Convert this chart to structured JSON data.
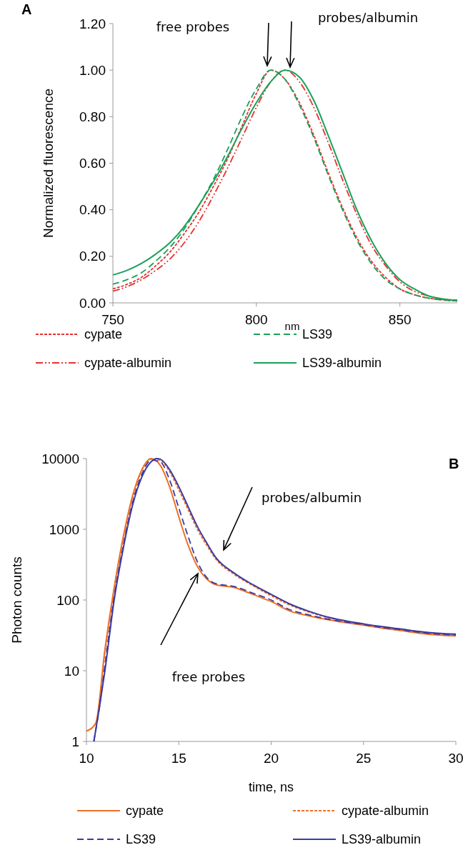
{
  "chart_data": [
    {
      "type": "line",
      "xlabel": "nm",
      "ylabel": "Normalized  fluorescence",
      "xlim": [
        750,
        870
      ],
      "xticks": [
        750,
        800,
        850
      ],
      "ylim": [
        0,
        1.2
      ],
      "yticks": [
        {
          "value": 0,
          "label": "0.00"
        },
        {
          "value": 0.2,
          "label": "0.20"
        },
        {
          "value": 0.4,
          "label": "0.40"
        },
        {
          "value": 0.6,
          "label": "0.60"
        },
        {
          "value": 0.8,
          "label": "0.80"
        },
        {
          "value": 1,
          "label": "1.00"
        },
        {
          "value": 1.2,
          "label": "1.20"
        }
      ],
      "grid": false,
      "legend": "bottom",
      "marker": "none",
      "annotations": [
        "A",
        "free probes",
        "probes/albumin"
      ],
      "x": [
        750,
        755,
        760,
        765,
        770,
        775,
        780,
        785,
        790,
        795,
        800,
        805,
        810,
        815,
        820,
        825,
        830,
        835,
        840,
        845,
        850,
        855,
        860,
        865,
        870
      ],
      "series": [
        {
          "name": "cypate",
          "color": "#e8312f",
          "line_style": "dotted",
          "values": [
            0.06,
            0.08,
            0.11,
            0.16,
            0.22,
            0.3,
            0.39,
            0.5,
            0.62,
            0.76,
            0.9,
            1.0,
            0.96,
            0.86,
            0.72,
            0.56,
            0.41,
            0.28,
            0.18,
            0.11,
            0.06,
            0.035,
            0.02,
            0.012,
            0.008
          ]
        },
        {
          "name": "LS39",
          "color": "#1aa05a",
          "line_style": "dashed",
          "values": [
            0.08,
            0.1,
            0.13,
            0.18,
            0.24,
            0.32,
            0.42,
            0.53,
            0.66,
            0.8,
            0.92,
            1.0,
            0.96,
            0.85,
            0.71,
            0.55,
            0.4,
            0.27,
            0.17,
            0.1,
            0.06,
            0.035,
            0.02,
            0.012,
            0.008
          ]
        },
        {
          "name": "cypate-albumin",
          "color": "#e8312f",
          "line_style": "dashdot",
          "values": [
            0.05,
            0.07,
            0.1,
            0.14,
            0.19,
            0.26,
            0.35,
            0.46,
            0.58,
            0.71,
            0.84,
            0.95,
            1.0,
            0.95,
            0.84,
            0.69,
            0.53,
            0.38,
            0.25,
            0.16,
            0.09,
            0.05,
            0.03,
            0.015,
            0.012
          ]
        },
        {
          "name": "LS39-albumin",
          "color": "#1aa05a",
          "line_style": "solid",
          "values": [
            0.12,
            0.14,
            0.17,
            0.21,
            0.26,
            0.33,
            0.42,
            0.52,
            0.63,
            0.75,
            0.86,
            0.95,
            1.0,
            0.97,
            0.87,
            0.72,
            0.56,
            0.4,
            0.27,
            0.17,
            0.1,
            0.06,
            0.03,
            0.017,
            0.01
          ]
        }
      ]
    },
    {
      "type": "line",
      "xlabel": "time, ns",
      "ylabel": "Photon counts",
      "log": "y",
      "xlim": [
        10,
        30
      ],
      "xticks": [
        10,
        15,
        20,
        25,
        30
      ],
      "ylim": [
        1,
        10000
      ],
      "yticks": [
        1,
        10,
        100,
        1000,
        10000
      ],
      "grid": false,
      "legend": "bottom",
      "marker": "none",
      "annotations": [
        "B",
        "probes/albumin",
        "free probes"
      ],
      "series": [
        {
          "name": "cypate",
          "color": "#f07025",
          "line_style": "solid",
          "x": [
            10,
            10.5,
            11,
            11.5,
            12,
            12.5,
            13,
            13.5,
            14,
            14.5,
            15,
            15.5,
            16,
            16.5,
            17,
            18,
            19,
            20,
            21,
            22,
            23,
            24,
            25,
            26,
            27,
            28,
            29,
            30
          ],
          "values": [
            1.4,
            1.8,
            20,
            150,
            800,
            3000,
            7000,
            10000,
            8000,
            4000,
            1500,
            600,
            300,
            200,
            165,
            150,
            120,
            95,
            70,
            60,
            53,
            48,
            44,
            40,
            37,
            34,
            32,
            31
          ]
        },
        {
          "name": "cypate-albumin",
          "color": "#f07025",
          "line_style": "dotted",
          "x": [
            10,
            10.5,
            11,
            11.5,
            12,
            12.5,
            13,
            13.5,
            14,
            14.5,
            15,
            15.5,
            16,
            16.5,
            17,
            18,
            19,
            20,
            21,
            22,
            23,
            24,
            25,
            26,
            27,
            28,
            29,
            30
          ],
          "values": [
            1.4,
            1.8,
            18,
            140,
            750,
            2800,
            6800,
            9800,
            9500,
            6500,
            3600,
            1900,
            1000,
            600,
            380,
            230,
            160,
            115,
            85,
            68,
            57,
            50,
            45,
            41,
            38,
            35,
            33,
            32
          ]
        },
        {
          "name": "LS39",
          "color": "#3b3ba0",
          "line_style": "dashed",
          "x": [
            10.4,
            10.7,
            11,
            11.5,
            12,
            12.5,
            13,
            13.5,
            14,
            14.5,
            15,
            15.5,
            16,
            16.5,
            17,
            18,
            19,
            20,
            21,
            22,
            23,
            24,
            25,
            26,
            27,
            28,
            29,
            30
          ],
          "values": [
            1,
            3,
            12,
            110,
            600,
            2400,
            6000,
            9500,
            9000,
            5000,
            2000,
            800,
            350,
            210,
            170,
            155,
            125,
            100,
            73,
            62,
            54,
            49,
            45,
            41,
            38,
            35,
            33,
            32
          ]
        },
        {
          "name": "LS39-albumin",
          "color": "#3b3ba0",
          "line_style": "solid",
          "x": [
            10.4,
            10.7,
            11,
            11.5,
            12,
            12.5,
            13,
            13.5,
            13.8,
            14,
            14.5,
            15,
            15.5,
            16,
            16.5,
            17,
            18,
            19,
            20,
            21,
            22,
            23,
            24,
            25,
            26,
            27,
            28,
            29,
            30
          ],
          "values": [
            1,
            3,
            10,
            100,
            550,
            2200,
            5500,
            9000,
            10000,
            9800,
            7000,
            4000,
            2100,
            1100,
            650,
            400,
            240,
            165,
            120,
            88,
            70,
            58,
            51,
            46,
            42,
            39,
            36,
            34,
            33
          ]
        }
      ]
    }
  ]
}
